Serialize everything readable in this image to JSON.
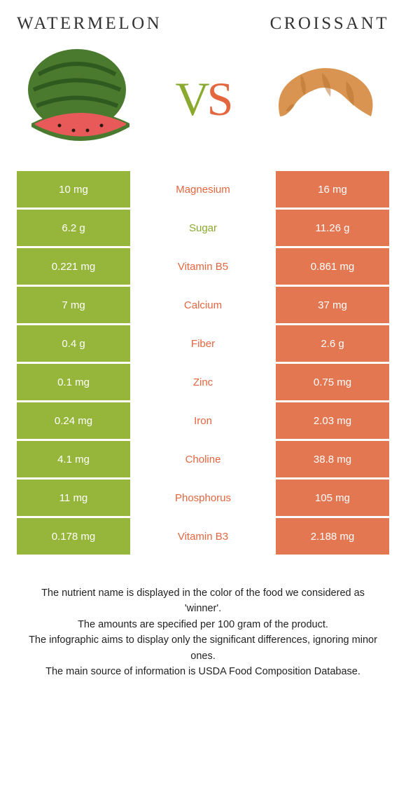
{
  "header": {
    "left_title": "WATERMELON",
    "right_title": "CROISSANT",
    "vs_v": "V",
    "vs_s": "S"
  },
  "colors": {
    "green": "#95b63a",
    "orange": "#e37752",
    "label_green": "#8aa92f",
    "label_orange": "#e3663f"
  },
  "rows": [
    {
      "left": "10 mg",
      "label": "Magnesium",
      "right": "16 mg",
      "winner": "orange"
    },
    {
      "left": "6.2 g",
      "label": "Sugar",
      "right": "11.26 g",
      "winner": "green"
    },
    {
      "left": "0.221 mg",
      "label": "Vitamin B5",
      "right": "0.861 mg",
      "winner": "orange"
    },
    {
      "left": "7 mg",
      "label": "Calcium",
      "right": "37 mg",
      "winner": "orange"
    },
    {
      "left": "0.4 g",
      "label": "Fiber",
      "right": "2.6 g",
      "winner": "orange"
    },
    {
      "left": "0.1 mg",
      "label": "Zinc",
      "right": "0.75 mg",
      "winner": "orange"
    },
    {
      "left": "0.24 mg",
      "label": "Iron",
      "right": "2.03 mg",
      "winner": "orange"
    },
    {
      "left": "4.1 mg",
      "label": "Choline",
      "right": "38.8 mg",
      "winner": "orange"
    },
    {
      "left": "11 mg",
      "label": "Phosphorus",
      "right": "105 mg",
      "winner": "orange"
    },
    {
      "left": "0.178 mg",
      "label": "Vitamin B3",
      "right": "2.188 mg",
      "winner": "orange"
    }
  ],
  "footnote": {
    "line1": "The nutrient name is displayed in the color of the food we considered as 'winner'.",
    "line2": "The amounts are specified per 100 gram of the product.",
    "line3": "The infographic aims to display only the significant differences, ignoring minor ones.",
    "line4": "The main source of information is USDA Food Composition Database."
  }
}
